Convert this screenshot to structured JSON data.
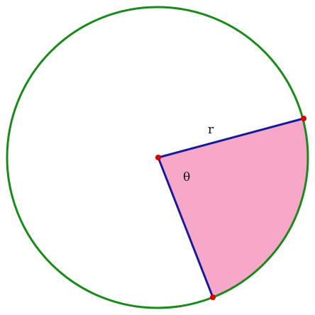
{
  "labels": {
    "radius": "r",
    "angle": "θ"
  },
  "colors": {
    "circle": "#1a8a1a",
    "radius_lines": "#1a1a99",
    "sector_fill": "#f7a8c8",
    "points": "#dd0000",
    "background": "#ffffff"
  }
}
